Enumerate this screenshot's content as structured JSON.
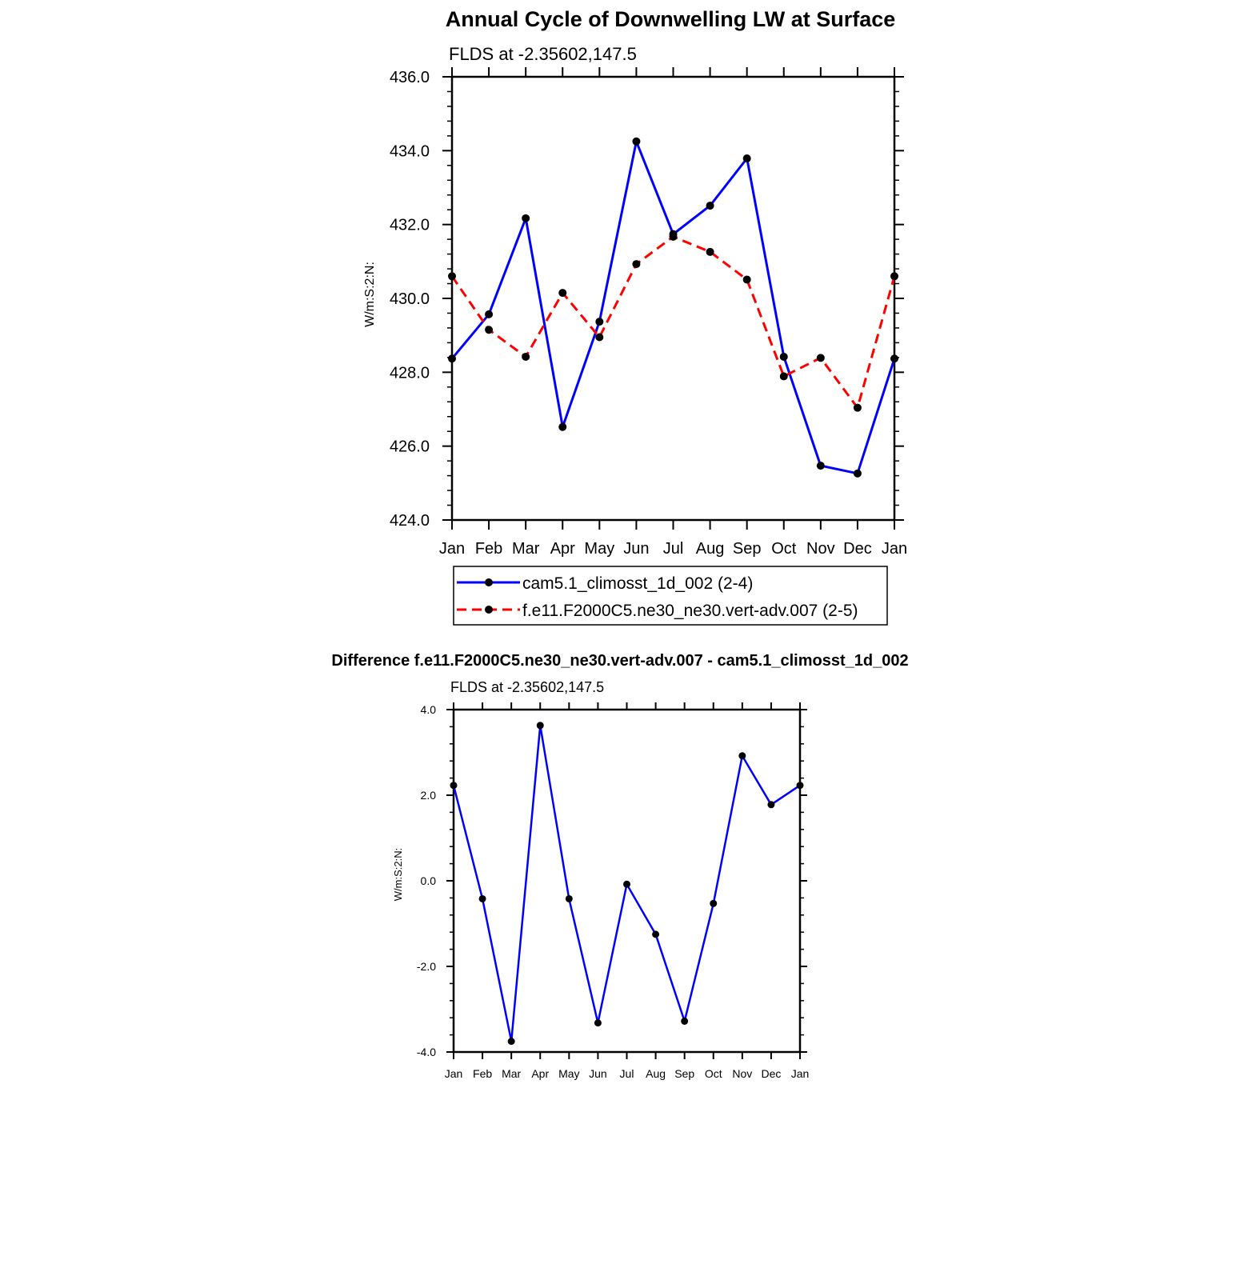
{
  "chart_data": [
    {
      "type": "line",
      "title": "Annual Cycle of Downwelling LW at Surface",
      "subtitle": "FLDS at -2.35602,147.5",
      "xlabel": "",
      "ylabel": "W/m:S:2:N:",
      "categories": [
        "Jan",
        "Feb",
        "Mar",
        "Apr",
        "May",
        "Jun",
        "Jul",
        "Aug",
        "Sep",
        "Oct",
        "Nov",
        "Dec",
        "Jan"
      ],
      "ylim": [
        424.0,
        436.0
      ],
      "yticks": [
        "424.0",
        "426.0",
        "428.0",
        "430.0",
        "432.0",
        "434.0",
        "436.0"
      ],
      "ytick_values": [
        424,
        426,
        428,
        430,
        432,
        434,
        436
      ],
      "grid": false,
      "legend_position": "bottom",
      "series": [
        {
          "name": "cam5.1_climosst_1d_002 (2-4)",
          "color": "#0000ff",
          "line_style": "solid",
          "marker": "filled-circle",
          "values": [
            428.37,
            429.57,
            432.17,
            426.52,
            429.37,
            434.25,
            431.74,
            432.51,
            433.79,
            428.42,
            425.47,
            425.26,
            428.37
          ]
        },
        {
          "name": "f.e11.F2000C5.ne30_ne30.vert-adv.007 (2-5)",
          "color": "#ff0000",
          "line_style": "dashed",
          "marker": "filled-circle",
          "values": [
            430.6,
            429.15,
            428.42,
            430.15,
            428.95,
            430.93,
            431.67,
            431.26,
            430.51,
            427.89,
            428.39,
            427.04,
            430.6
          ]
        }
      ]
    },
    {
      "type": "line",
      "title": "Difference f.e11.F2000C5.ne30_ne30.vert-adv.007 - cam5.1_climosst_1d_002",
      "subtitle": "FLDS at -2.35602,147.5",
      "xlabel": "",
      "ylabel": "W/m:S:2:N:",
      "categories": [
        "Jan",
        "Feb",
        "Mar",
        "Apr",
        "May",
        "Jun",
        "Jul",
        "Aug",
        "Sep",
        "Oct",
        "Nov",
        "Dec",
        "Jan"
      ],
      "ylim": [
        -4.0,
        4.0
      ],
      "yticks": [
        "-4.0",
        "-2.0",
        "0.0",
        "2.0",
        "4.0"
      ],
      "ytick_values": [
        -4,
        -2,
        0,
        2,
        4
      ],
      "grid": false,
      "series": [
        {
          "color": "#0000ff",
          "line_style": "solid",
          "marker": "filled-circle",
          "values": [
            2.23,
            -0.42,
            -3.75,
            3.63,
            -0.42,
            -3.32,
            -0.08,
            -1.25,
            -3.28,
            -0.53,
            2.92,
            1.78,
            2.23
          ]
        }
      ]
    }
  ]
}
